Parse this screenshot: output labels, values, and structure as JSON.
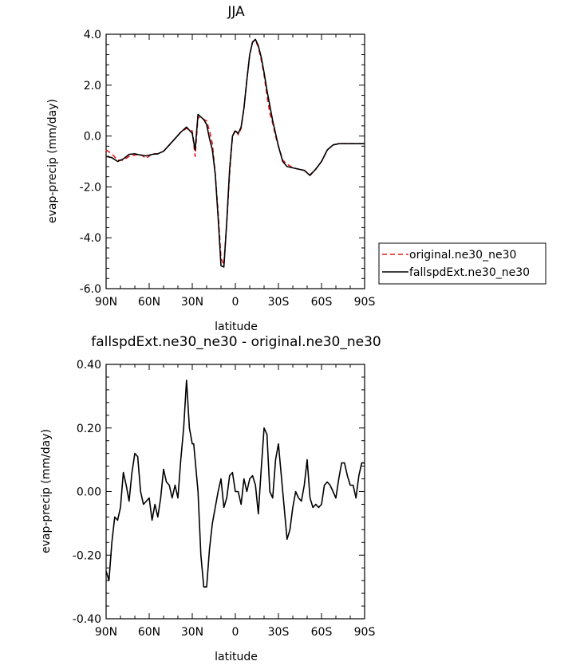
{
  "chart_data": [
    {
      "type": "line",
      "title": "JJA",
      "xlabel": "latitude",
      "ylabel": "evap-precip (mm/day)",
      "xlim": [
        -90,
        90
      ],
      "ylim": [
        -6.0,
        4.0
      ],
      "xticks": [
        -90,
        -60,
        -30,
        0,
        30,
        60,
        90
      ],
      "xtick_labels": [
        "90N",
        "60N",
        "30N",
        "0",
        "30S",
        "60S",
        "90S"
      ],
      "yticks": [
        -6,
        -4,
        -2,
        0,
        2,
        4
      ],
      "ytick_labels": [
        "-6.0",
        "-4.0",
        "-2.0",
        "0.0",
        "2.0",
        "4.0"
      ],
      "legend": [
        "original.ne30_ne30",
        "fallspdExt.ne30_ne30"
      ],
      "series": [
        {
          "name": "original.ne30_ne30",
          "color": "#e41a1c",
          "dash": "dashed",
          "x": [
            -90,
            -86,
            -82,
            -78,
            -74,
            -70,
            -66,
            -62,
            -58,
            -54,
            -50,
            -46,
            -42,
            -38,
            -34,
            -30,
            -28,
            -26,
            -24,
            -22,
            -20,
            -18,
            -16,
            -14,
            -12,
            -10,
            -8,
            -6,
            -4,
            -2,
            0,
            2,
            4,
            6,
            8,
            10,
            12,
            14,
            16,
            18,
            20,
            22,
            24,
            26,
            28,
            30,
            33,
            36,
            40,
            44,
            48,
            52,
            56,
            60,
            64,
            68,
            72,
            76,
            80,
            84,
            88,
            90
          ],
          "y": [
            -0.55,
            -0.7,
            -0.95,
            -0.95,
            -0.8,
            -0.75,
            -0.72,
            -0.88,
            -0.7,
            -0.7,
            -0.6,
            -0.35,
            -0.1,
            0.15,
            0.3,
            0.2,
            -0.8,
            0.75,
            0.7,
            0.65,
            0.6,
            0.2,
            -0.3,
            -1.5,
            -3.0,
            -4.8,
            -5.05,
            -3.4,
            -1.5,
            0.0,
            0.25,
            0.05,
            0.3,
            1.1,
            2.2,
            3.2,
            3.7,
            3.75,
            3.5,
            3.0,
            2.4,
            1.6,
            0.9,
            0.5,
            0.0,
            -0.4,
            -0.95,
            -1.1,
            -1.25,
            -1.3,
            -1.35,
            -1.52,
            -1.3,
            -1.0,
            -0.55,
            -0.35,
            -0.3,
            -0.3,
            -0.3,
            -0.3,
            -0.3,
            -0.3
          ]
        },
        {
          "name": "fallspdExt.ne30_ne30",
          "color": "#000000",
          "dash": "solid",
          "x": [
            -90,
            -86,
            -82,
            -78,
            -74,
            -70,
            -66,
            -62,
            -58,
            -54,
            -50,
            -46,
            -42,
            -38,
            -34,
            -30,
            -28,
            -26,
            -24,
            -22,
            -20,
            -18,
            -16,
            -14,
            -12,
            -10,
            -8,
            -6,
            -4,
            -2,
            0,
            2,
            4,
            6,
            8,
            10,
            12,
            14,
            16,
            18,
            20,
            22,
            24,
            26,
            28,
            30,
            33,
            36,
            40,
            44,
            48,
            52,
            56,
            60,
            64,
            68,
            72,
            76,
            80,
            84,
            88,
            90
          ],
          "y": [
            -0.8,
            -0.85,
            -1.0,
            -0.9,
            -0.72,
            -0.7,
            -0.75,
            -0.78,
            -0.72,
            -0.7,
            -0.6,
            -0.35,
            -0.1,
            0.15,
            0.35,
            0.1,
            -0.55,
            0.85,
            0.75,
            0.65,
            0.45,
            -0.1,
            -0.55,
            -1.5,
            -3.2,
            -5.1,
            -5.15,
            -3.4,
            -1.3,
            0.0,
            0.2,
            0.1,
            0.35,
            1.1,
            2.2,
            3.2,
            3.7,
            3.8,
            3.55,
            3.1,
            2.5,
            1.8,
            1.2,
            0.6,
            0.1,
            -0.4,
            -1.0,
            -1.2,
            -1.25,
            -1.3,
            -1.35,
            -1.55,
            -1.3,
            -1.0,
            -0.55,
            -0.35,
            -0.3,
            -0.3,
            -0.3,
            -0.3,
            -0.3,
            -0.3
          ]
        }
      ]
    },
    {
      "type": "line",
      "title": "fallspdExt.ne30_ne30 - original.ne30_ne30",
      "xlabel": "latitude",
      "ylabel": "evap-precip (mm/day)",
      "xlim": [
        -90,
        90
      ],
      "ylim": [
        -0.4,
        0.4
      ],
      "xticks": [
        -90,
        -60,
        -30,
        0,
        30,
        60,
        90
      ],
      "xtick_labels": [
        "90N",
        "60N",
        "30N",
        "0",
        "30S",
        "60S",
        "90S"
      ],
      "yticks": [
        -0.4,
        -0.2,
        0.0,
        0.2,
        0.4
      ],
      "ytick_labels": [
        "-0.40",
        "-0.20",
        "0.00",
        "0.20",
        "0.40"
      ],
      "series": [
        {
          "name": "fallspdExt.ne30_ne30 - original.ne30_ne30",
          "color": "#000000",
          "dash": "solid",
          "x": [
            -90,
            -88,
            -86,
            -84,
            -82,
            -80,
            -78,
            -76,
            -74,
            -72,
            -70,
            -68,
            -66,
            -64,
            -62,
            -60,
            -58,
            -56,
            -54,
            -52,
            -50,
            -48,
            -46,
            -44,
            -42,
            -40,
            -38,
            -36,
            -34,
            -32,
            -30,
            -29,
            -28,
            -27,
            -26,
            -24,
            -22,
            -20,
            -18,
            -16,
            -14,
            -12,
            -10,
            -8,
            -6,
            -4,
            -2,
            0,
            2,
            4,
            6,
            8,
            10,
            12,
            14,
            16,
            18,
            20,
            22,
            24,
            26,
            28,
            30,
            32,
            34,
            36,
            38,
            40,
            42,
            44,
            46,
            48,
            50,
            52,
            54,
            56,
            58,
            60,
            62,
            64,
            66,
            68,
            70,
            72,
            74,
            76,
            78,
            80,
            82,
            84,
            86,
            88,
            90
          ],
          "y": [
            -0.25,
            -0.28,
            -0.16,
            -0.08,
            -0.09,
            -0.05,
            0.06,
            0.02,
            -0.03,
            0.06,
            0.12,
            0.11,
            0.0,
            -0.04,
            -0.03,
            -0.02,
            -0.09,
            -0.04,
            -0.08,
            -0.02,
            0.07,
            0.03,
            0.02,
            -0.02,
            0.02,
            -0.02,
            0.1,
            0.2,
            0.35,
            0.2,
            0.15,
            0.15,
            0.1,
            0.05,
            0.0,
            -0.2,
            -0.3,
            -0.3,
            -0.18,
            -0.1,
            -0.05,
            0.0,
            0.04,
            -0.05,
            -0.02,
            0.05,
            0.06,
            0.0,
            0.0,
            -0.04,
            0.04,
            0.0,
            0.04,
            0.05,
            0.02,
            -0.07,
            0.07,
            0.2,
            0.18,
            0.0,
            -0.02,
            0.1,
            0.15,
            0.05,
            -0.05,
            -0.15,
            -0.12,
            -0.05,
            0.0,
            -0.02,
            -0.03,
            0.02,
            0.1,
            -0.02,
            -0.05,
            -0.04,
            -0.05,
            -0.04,
            0.02,
            0.03,
            0.02,
            0.0,
            -0.02,
            0.04,
            0.09,
            0.09,
            0.05,
            0.02,
            0.02,
            -0.02,
            0.05,
            0.09,
            0.09
          ]
        }
      ]
    }
  ]
}
